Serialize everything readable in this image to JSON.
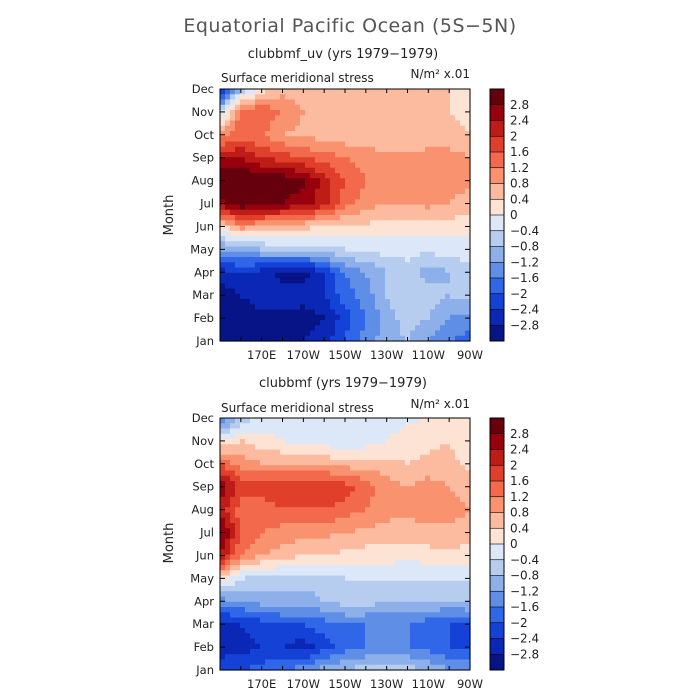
{
  "title": "Equatorial Pacific Ocean (5S−5N)",
  "colorbar": {
    "levels": [
      "2.8",
      "2.4",
      "2",
      "1.6",
      "1.2",
      "0.8",
      "0.4",
      "0",
      "−0.4",
      "−0.8",
      "−1.2",
      "−1.6",
      "−2",
      "−2.4",
      "−2.8"
    ],
    "colors": [
      "#67000d",
      "#99000d",
      "#bd1d16",
      "#e0402b",
      "#f2694c",
      "#f9936f",
      "#fcbb9f",
      "#fde3d3",
      "#dce8f7",
      "#b6cdf0",
      "#8eb0ea",
      "#5f8ee6",
      "#3066e8",
      "#1442d6",
      "#0a28b5",
      "#061488"
    ]
  },
  "chart_data": [
    {
      "type": "heatmap",
      "subtitle": "clubbmf_uv (yrs 1979−1979)",
      "field_label": "Surface meridional stress",
      "units_label": "N/m² x.01",
      "ylabel": "Month",
      "y_categories": [
        "Jan",
        "Feb",
        "Mar",
        "Apr",
        "May",
        "Jun",
        "Jul",
        "Aug",
        "Sep",
        "Oct",
        "Nov",
        "Dec"
      ],
      "x_ticks": [
        "170E",
        "170W",
        "150W",
        "130W",
        "110W",
        "90W"
      ],
      "x_range_deg_east": [
        150,
        270
      ],
      "y_range_month": [
        1,
        12
      ],
      "contour_levels": [
        -2.8,
        -2.4,
        -2,
        -1.6,
        -1.2,
        -0.8,
        -0.4,
        0,
        0.4,
        0.8,
        1.2,
        1.6,
        2,
        2.4,
        2.8
      ],
      "x_deg_east": [
        150,
        160,
        170,
        180,
        190,
        200,
        210,
        220,
        230,
        240,
        250,
        260,
        270
      ],
      "values_by_month": [
        [
          -3.2,
          -3.0,
          -2.9,
          -2.9,
          -2.8,
          -2.6,
          -2.0,
          -1.4,
          -1.0,
          -0.8,
          -1.2,
          -1.6,
          -1.8
        ],
        [
          -3.2,
          -3.2,
          -3.0,
          -3.0,
          -3.0,
          -2.8,
          -2.2,
          -1.6,
          -1.0,
          -0.6,
          -0.8,
          -1.2,
          -1.4
        ],
        [
          -3.0,
          -2.8,
          -2.4,
          -2.5,
          -2.6,
          -2.4,
          -1.8,
          -1.4,
          -0.8,
          -0.4,
          -0.6,
          -0.8,
          -0.6
        ],
        [
          -2.6,
          -2.4,
          -2.6,
          -3.0,
          -3.0,
          -2.4,
          -1.6,
          -1.2,
          -0.8,
          -0.6,
          -1.0,
          -0.8,
          -0.6
        ],
        [
          -1.2,
          -1.0,
          -0.8,
          -0.6,
          -0.6,
          -0.5,
          -0.4,
          -0.3,
          -0.2,
          -0.2,
          -0.3,
          -0.2,
          -0.1
        ],
        [
          0.2,
          1.0,
          0.8,
          0.6,
          0.5,
          0.4,
          0.3,
          0.3,
          0.2,
          0.2,
          0.3,
          0.2,
          0.1
        ],
        [
          2.6,
          3.2,
          3.0,
          2.8,
          2.6,
          2.2,
          1.4,
          1.0,
          0.8,
          0.8,
          0.9,
          0.8,
          0.6
        ],
        [
          3.2,
          3.4,
          3.2,
          3.1,
          2.9,
          2.2,
          1.6,
          1.2,
          1.0,
          1.0,
          1.1,
          1.0,
          0.9
        ],
        [
          2.4,
          2.4,
          2.0,
          1.8,
          1.6,
          1.4,
          1.2,
          1.0,
          1.0,
          0.9,
          1.0,
          1.0,
          0.8
        ],
        [
          1.0,
          1.4,
          1.2,
          0.8,
          0.7,
          0.6,
          0.5,
          0.5,
          0.4,
          0.4,
          0.5,
          0.5,
          0.4
        ],
        [
          -0.6,
          1.4,
          1.6,
          1.2,
          0.8,
          0.6,
          0.5,
          0.4,
          0.4,
          0.4,
          0.4,
          0.4,
          0.3
        ],
        [
          -2.6,
          -0.8,
          0.2,
          0.6,
          0.6,
          0.5,
          0.5,
          0.5,
          0.4,
          0.4,
          0.4,
          0.4,
          0.3
        ]
      ]
    },
    {
      "type": "heatmap",
      "subtitle": "clubbmf (yrs 1979−1979)",
      "field_label": "Surface meridional stress",
      "units_label": "N/m² x.01",
      "ylabel": "Month",
      "y_categories": [
        "Jan",
        "Feb",
        "Mar",
        "Apr",
        "May",
        "Jun",
        "Jul",
        "Aug",
        "Sep",
        "Oct",
        "Nov",
        "Dec"
      ],
      "x_ticks": [
        "170E",
        "170W",
        "150W",
        "130W",
        "110W",
        "90W"
      ],
      "x_range_deg_east": [
        150,
        270
      ],
      "y_range_month": [
        1,
        12
      ],
      "contour_levels": [
        -2.8,
        -2.4,
        -2,
        -1.6,
        -1.2,
        -0.8,
        -0.4,
        0,
        0.4,
        0.8,
        1.2,
        1.6,
        2,
        2.4,
        2.8
      ],
      "x_deg_east": [
        150,
        160,
        170,
        180,
        190,
        200,
        210,
        220,
        230,
        240,
        250,
        260,
        270
      ],
      "values_by_month": [
        [
          -2.2,
          -2.0,
          -1.8,
          -1.6,
          -1.4,
          -1.0,
          -0.8,
          -0.6,
          -0.6,
          -0.6,
          -0.8,
          -1.2,
          -1.4
        ],
        [
          -2.6,
          -2.6,
          -2.4,
          -2.4,
          -2.6,
          -2.2,
          -1.8,
          -1.6,
          -1.6,
          -1.6,
          -1.8,
          -2.0,
          -2.0
        ],
        [
          -2.6,
          -2.4,
          -2.2,
          -2.0,
          -2.0,
          -1.8,
          -1.6,
          -1.6,
          -1.6,
          -1.6,
          -1.8,
          -2.0,
          -2.2
        ],
        [
          -1.4,
          -1.2,
          -1.0,
          -1.0,
          -1.0,
          -0.8,
          -0.6,
          -0.6,
          -0.8,
          -0.8,
          -0.8,
          -0.8,
          -0.6
        ],
        [
          0.4,
          -0.4,
          -0.6,
          -0.6,
          -0.6,
          -0.6,
          -0.4,
          -0.4,
          -0.4,
          -0.3,
          -0.4,
          -0.4,
          -0.4
        ],
        [
          2.4,
          1.2,
          0.8,
          0.6,
          0.4,
          0.4,
          0.3,
          0.2,
          0.2,
          0.1,
          0.2,
          0.3,
          0.2
        ],
        [
          3.0,
          1.6,
          1.2,
          1.0,
          1.0,
          0.9,
          0.8,
          0.7,
          0.6,
          0.6,
          0.7,
          0.7,
          0.6
        ],
        [
          2.2,
          1.4,
          1.4,
          1.6,
          1.6,
          1.6,
          1.4,
          1.2,
          1.0,
          0.9,
          1.0,
          1.0,
          0.8
        ],
        [
          2.8,
          1.8,
          1.8,
          1.8,
          2.0,
          2.0,
          1.8,
          1.4,
          1.0,
          0.8,
          1.0,
          0.8,
          0.6
        ],
        [
          1.6,
          1.0,
          0.8,
          0.8,
          0.8,
          0.7,
          0.6,
          0.6,
          0.5,
          0.4,
          0.5,
          0.5,
          0.3
        ],
        [
          0.0,
          0.4,
          0.2,
          0.0,
          -0.2,
          -0.2,
          -0.4,
          -0.2,
          0.0,
          0.2,
          0.3,
          0.4,
          0.2
        ],
        [
          -1.8,
          -0.6,
          -0.4,
          -0.2,
          -0.2,
          -0.3,
          -0.4,
          -0.3,
          -0.2,
          -0.1,
          0.0,
          0.1,
          0.0
        ]
      ]
    }
  ]
}
